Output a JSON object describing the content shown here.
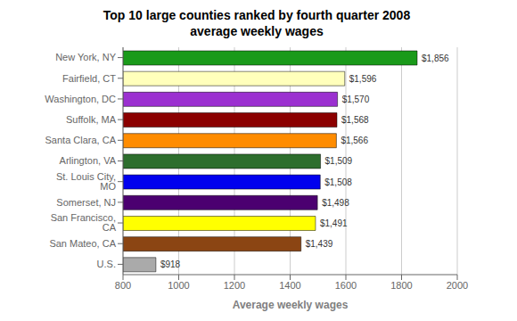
{
  "chart_data": {
    "type": "bar",
    "orientation": "horizontal",
    "title": "Top 10 large counties ranked by fourth quarter 2008\naverage weekly wages",
    "xlabel": "Average weekly wages",
    "categories": [
      "New York, NY",
      "Fairfield, CT",
      "Washington, DC",
      "Suffolk, MA",
      "Santa Clara, CA",
      "Arlington, VA",
      "St. Louis City, MO",
      "Somerset, NJ",
      "San Francisco, CA",
      "San Mateo, CA",
      "U.S."
    ],
    "values": [
      1856,
      1596,
      1570,
      1568,
      1566,
      1509,
      1508,
      1498,
      1491,
      1439,
      918
    ],
    "value_labels": [
      "$1,856",
      "$1,596",
      "$1,570",
      "$1,568",
      "$1,566",
      "$1,509",
      "$1,508",
      "$1,498",
      "$1,491",
      "$1,439",
      "$918"
    ],
    "colors": [
      "#1a9a1a",
      "#ffffbb",
      "#9b30d0",
      "#8b0000",
      "#ff8c00",
      "#2d6e2d",
      "#0000ee",
      "#4b0070",
      "#ffff00",
      "#8b4513",
      "#aaaaaa"
    ],
    "xlim": [
      800,
      2000
    ],
    "xticks": [
      800,
      1000,
      1200,
      1400,
      1600,
      1800,
      2000
    ],
    "grid": true,
    "data_labels": true
  }
}
